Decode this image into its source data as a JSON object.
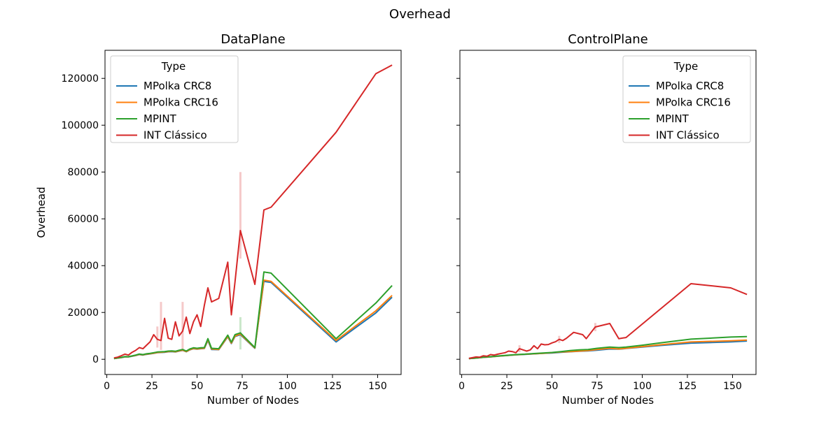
{
  "figure": {
    "suptitle": "Overhead"
  },
  "chart_data": [
    {
      "type": "line",
      "title": "DataPlane",
      "xlabel": "Number of Nodes",
      "ylabel": "Overhead",
      "xlim": [
        -1,
        163
      ],
      "ylim": [
        -6500,
        132000
      ],
      "xticks": [
        0,
        25,
        50,
        75,
        100,
        125,
        150
      ],
      "yticks": [
        0,
        20000,
        40000,
        60000,
        80000,
        100000,
        120000
      ],
      "legend": {
        "title": "Type",
        "placement": "upper left"
      },
      "series": [
        {
          "name": "MPolka CRC8",
          "color": "#1f77b4",
          "x": [
            4,
            6,
            8,
            10,
            12,
            14,
            16,
            18,
            20,
            22,
            24,
            26,
            28,
            30,
            32,
            34,
            36,
            38,
            40,
            42,
            44,
            46,
            48,
            50,
            52,
            54,
            56,
            58,
            62,
            67,
            69,
            71,
            74,
            82,
            87,
            91,
            127,
            149,
            158
          ],
          "y": [
            300,
            500,
            700,
            1000,
            1000,
            1300,
            1600,
            2000,
            1800,
            2100,
            2300,
            2500,
            2800,
            2900,
            3000,
            3200,
            3300,
            3100,
            3500,
            3800,
            3200,
            4000,
            4500,
            4300,
            4500,
            4600,
            8000,
            4200,
            4100,
            9600,
            6700,
            9700,
            10500,
            4700,
            33300,
            32800,
            7400,
            19800,
            26500
          ]
        },
        {
          "name": "MPolka CRC16",
          "color": "#ff7f0e",
          "x": [
            4,
            6,
            8,
            10,
            12,
            14,
            16,
            18,
            20,
            22,
            24,
            26,
            28,
            30,
            32,
            34,
            36,
            38,
            40,
            42,
            44,
            46,
            48,
            50,
            52,
            54,
            56,
            58,
            62,
            67,
            69,
            71,
            74,
            82,
            87,
            91,
            127,
            149,
            158
          ],
          "y": [
            320,
            520,
            740,
            1050,
            1050,
            1350,
            1680,
            2100,
            1900,
            2200,
            2400,
            2600,
            2900,
            3000,
            3100,
            3300,
            3400,
            3200,
            3600,
            3900,
            3300,
            4100,
            4600,
            4400,
            4600,
            4700,
            8300,
            4400,
            4200,
            9800,
            6900,
            9900,
            10800,
            4800,
            33800,
            33300,
            8000,
            20700,
            27300
          ]
        },
        {
          "name": "MPINT",
          "color": "#2ca02c",
          "x": [
            4,
            6,
            8,
            10,
            12,
            14,
            16,
            18,
            20,
            22,
            24,
            26,
            28,
            30,
            32,
            34,
            36,
            38,
            40,
            42,
            44,
            46,
            48,
            50,
            52,
            54,
            56,
            58,
            62,
            67,
            69,
            71,
            74,
            82,
            87,
            91,
            127,
            149,
            158
          ],
          "y": [
            350,
            560,
            800,
            1150,
            1100,
            1450,
            1800,
            2250,
            2000,
            2350,
            2550,
            2800,
            3100,
            3200,
            3300,
            3500,
            3600,
            3400,
            3850,
            4200,
            3500,
            4400,
            4900,
            4700,
            4900,
            5000,
            8800,
            4700,
            4500,
            10300,
            7300,
            10500,
            11300,
            5000,
            37300,
            36800,
            8800,
            24000,
            31500
          ]
        },
        {
          "name": "INT Clássico",
          "color": "#d62728",
          "x": [
            4,
            6,
            8,
            10,
            12,
            14,
            16,
            18,
            20,
            22,
            24,
            26,
            28,
            30,
            32,
            34,
            36,
            38,
            40,
            42,
            44,
            46,
            48,
            50,
            52,
            54,
            56,
            58,
            62,
            67,
            69,
            71,
            74,
            82,
            87,
            91,
            127,
            149,
            158
          ],
          "y": [
            600,
            900,
            1500,
            2200,
            1800,
            3000,
            3800,
            5000,
            4500,
            6000,
            7500,
            10500,
            8500,
            8000,
            17500,
            9000,
            8500,
            16000,
            10000,
            12000,
            18000,
            11000,
            16000,
            19000,
            14000,
            23000,
            30500,
            24500,
            26000,
            41500,
            19000,
            33000,
            55000,
            32000,
            63800,
            65000,
            97000,
            122000,
            125700
          ]
        }
      ],
      "confidence_bands": [
        {
          "series": "INT Clássico",
          "x": [
            28,
            30,
            42,
            74
          ],
          "lower": [
            5000,
            4000,
            4000,
            43000
          ],
          "upper": [
            14000,
            24500,
            24500,
            80000
          ]
        },
        {
          "series": "MPINT",
          "x": [
            74
          ],
          "lower": [
            4200
          ],
          "upper": [
            18000
          ]
        }
      ]
    },
    {
      "type": "line",
      "title": "ControlPlane",
      "xlabel": "Number of Nodes",
      "ylabel": "",
      "xlim": [
        -1,
        163
      ],
      "ylim": [
        -6500,
        132000
      ],
      "xticks": [
        0,
        25,
        50,
        75,
        100,
        125,
        150
      ],
      "yticks": [
        0,
        20000,
        40000,
        60000,
        80000,
        100000,
        120000
      ],
      "legend": {
        "title": "Type",
        "placement": "upper right"
      },
      "series": [
        {
          "name": "MPolka CRC8",
          "color": "#1f77b4",
          "x": [
            4,
            8,
            12,
            16,
            20,
            25,
            30,
            35,
            40,
            45,
            50,
            55,
            60,
            65,
            70,
            75,
            82,
            87,
            91,
            100,
            110,
            127,
            149,
            158
          ],
          "y": [
            300,
            500,
            800,
            1000,
            1300,
            1600,
            1900,
            2100,
            2300,
            2500,
            2700,
            3000,
            3200,
            3400,
            3600,
            3900,
            4400,
            4300,
            4600,
            5200,
            5900,
            6900,
            7400,
            7800
          ]
        },
        {
          "name": "MPolka CRC16",
          "color": "#ff7f0e",
          "x": [
            4,
            8,
            12,
            16,
            20,
            25,
            30,
            35,
            40,
            45,
            50,
            55,
            60,
            65,
            70,
            75,
            82,
            87,
            91,
            100,
            110,
            127,
            149,
            158
          ],
          "y": [
            310,
            520,
            830,
            1050,
            1350,
            1650,
            1950,
            2150,
            2350,
            2550,
            2800,
            3100,
            3300,
            3500,
            3700,
            4200,
            4700,
            4400,
            4700,
            5400,
            6200,
            7400,
            7900,
            8200
          ]
        },
        {
          "name": "MPINT",
          "color": "#2ca02c",
          "x": [
            4,
            8,
            12,
            16,
            20,
            25,
            30,
            35,
            40,
            45,
            50,
            55,
            60,
            65,
            70,
            75,
            82,
            87,
            91,
            100,
            110,
            127,
            149,
            158
          ],
          "y": [
            320,
            540,
            860,
            1100,
            1400,
            1700,
            2000,
            2200,
            2450,
            2650,
            2900,
            3300,
            3700,
            4000,
            4200,
            4700,
            5200,
            5000,
            5200,
            6000,
            7000,
            8600,
            9500,
            9700
          ]
        },
        {
          "name": "INT Clássico",
          "color": "#d62728",
          "x": [
            4,
            6,
            8,
            10,
            12,
            14,
            16,
            18,
            20,
            22,
            24,
            26,
            28,
            30,
            32,
            34,
            36,
            38,
            40,
            42,
            44,
            46,
            48,
            50,
            52,
            54,
            56,
            58,
            62,
            67,
            69,
            74,
            82,
            87,
            91,
            127,
            149,
            158
          ],
          "y": [
            400,
            700,
            1000,
            900,
            1500,
            1300,
            2000,
            1800,
            2200,
            2500,
            2800,
            3500,
            3300,
            2800,
            4500,
            4000,
            3500,
            4000,
            5800,
            4500,
            6500,
            6200,
            6300,
            7000,
            7500,
            8500,
            8000,
            9000,
            11500,
            10500,
            8800,
            13800,
            15300,
            8800,
            9300,
            32300,
            30500,
            27700
          ]
        }
      ],
      "confidence_bands": [
        {
          "series": "INT Clássico",
          "x": [
            32,
            54,
            74
          ],
          "lower": [
            3000,
            7000,
            12000
          ],
          "upper": [
            6000,
            10000,
            15500
          ]
        }
      ]
    }
  ]
}
